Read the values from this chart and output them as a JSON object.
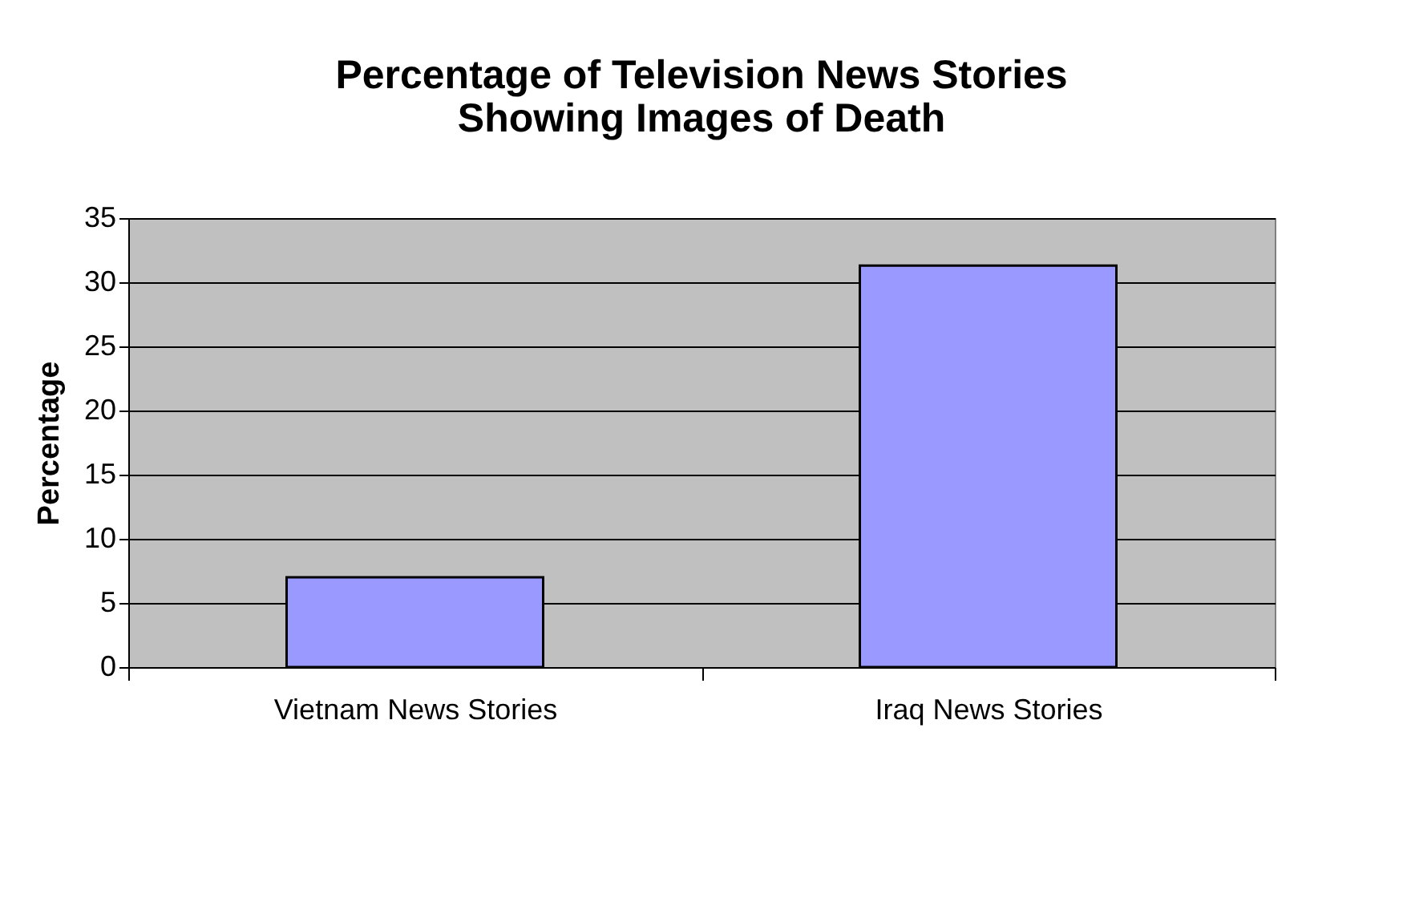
{
  "chart_data": {
    "type": "bar",
    "title": [
      "Percentage of Television News Stories",
      "Showing Images of Death"
    ],
    "ylabel": "Percentage",
    "categories": [
      "Vietnam News Stories",
      "Iraq News Stories"
    ],
    "values": [
      7,
      31.3
    ],
    "color": "#9999ff",
    "ylim": [
      0,
      35
    ],
    "yticks": [
      0,
      5,
      10,
      15,
      20,
      25,
      30,
      35
    ],
    "grid": "y"
  }
}
